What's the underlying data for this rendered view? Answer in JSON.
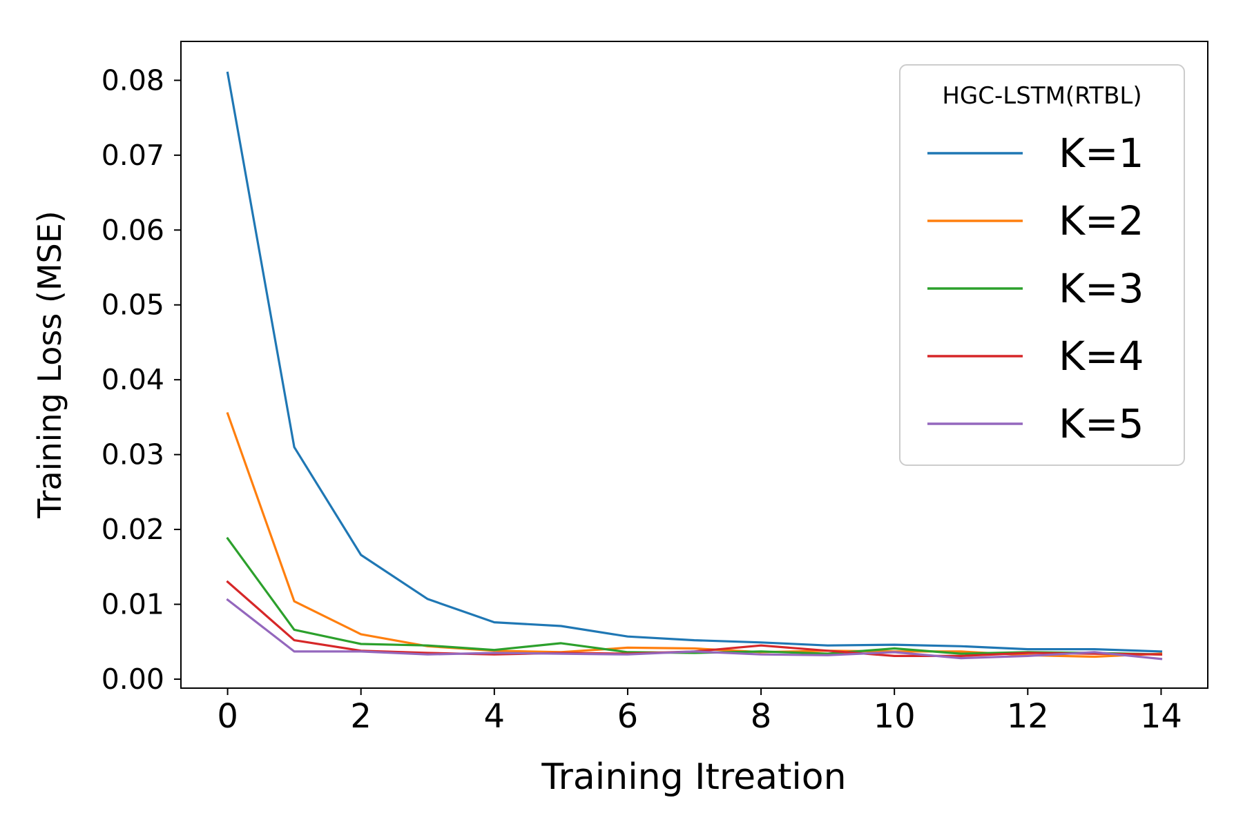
{
  "chart_data": {
    "type": "line",
    "title": "",
    "xlabel": "Training Itreation",
    "ylabel": "Training Loss (MSE)",
    "xlim": [
      -0.7,
      14.7
    ],
    "ylim": [
      -0.0012,
      0.0852
    ],
    "x": [
      0,
      1,
      2,
      3,
      4,
      5,
      6,
      7,
      8,
      9,
      10,
      11,
      12,
      13,
      14
    ],
    "x_ticks": [
      0,
      2,
      4,
      6,
      8,
      10,
      12,
      14
    ],
    "x_tick_labels": [
      "0",
      "2",
      "4",
      "6",
      "8",
      "10",
      "12",
      "14"
    ],
    "y_ticks": [
      0.0,
      0.01,
      0.02,
      0.03,
      0.04,
      0.05,
      0.06,
      0.07,
      0.08
    ],
    "y_tick_labels": [
      "0.00",
      "0.01",
      "0.02",
      "0.03",
      "0.04",
      "0.05",
      "0.06",
      "0.07",
      "0.08"
    ],
    "grid": false,
    "legend": {
      "title": "HGC-LSTM(RTBL)",
      "placement": "upper right"
    },
    "series": [
      {
        "name": "K=1",
        "color": "#1f77b4",
        "values": [
          0.081,
          0.031,
          0.0166,
          0.0107,
          0.0076,
          0.0071,
          0.0057,
          0.0052,
          0.0049,
          0.0045,
          0.0046,
          0.0044,
          0.004,
          0.004,
          0.0037
        ]
      },
      {
        "name": "K=2",
        "color": "#ff7f0e",
        "values": [
          0.0355,
          0.0104,
          0.006,
          0.0044,
          0.0038,
          0.0036,
          0.0042,
          0.0041,
          0.0036,
          0.0038,
          0.0037,
          0.0037,
          0.0032,
          0.003,
          0.0034
        ]
      },
      {
        "name": "K=3",
        "color": "#2ca02c",
        "values": [
          0.0188,
          0.0066,
          0.0047,
          0.0045,
          0.0039,
          0.0048,
          0.0036,
          0.0035,
          0.0037,
          0.0034,
          0.0041,
          0.0034,
          0.0036,
          0.0035,
          0.0033
        ]
      },
      {
        "name": "K=4",
        "color": "#d62728",
        "values": [
          0.013,
          0.0052,
          0.0038,
          0.0035,
          0.0033,
          0.0035,
          0.0034,
          0.0037,
          0.0045,
          0.0038,
          0.0031,
          0.0031,
          0.0035,
          0.0034,
          0.0033
        ]
      },
      {
        "name": "K=5",
        "color": "#9467bd",
        "values": [
          0.0106,
          0.0037,
          0.0037,
          0.0033,
          0.0035,
          0.0034,
          0.0033,
          0.0037,
          0.0033,
          0.0032,
          0.0036,
          0.0028,
          0.0031,
          0.0036,
          0.0027
        ]
      }
    ]
  }
}
